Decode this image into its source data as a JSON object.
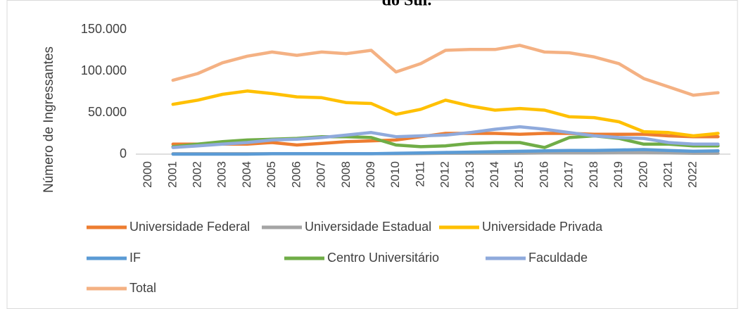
{
  "chart_data": {
    "type": "line",
    "title": "do Sul.",
    "ylabel": "Número de Ingressantes",
    "categories": [
      "2000",
      "2001",
      "2002",
      "2003",
      "2004",
      "2005",
      "2006",
      "2007",
      "2008",
      "2009",
      "2010",
      "2011",
      "2012",
      "2013",
      "2014",
      "2015",
      "2016",
      "2017",
      "2018",
      "2019",
      "2020",
      "2021",
      "2022",
      null
    ],
    "ylim": [
      0,
      150000
    ],
    "yticks": [
      0,
      {
        "value": 50000,
        "label": "50.000"
      },
      {
        "value": 100000,
        "label": "100.000"
      },
      {
        "value": 150000,
        "label": "150.000"
      }
    ],
    "grid": false,
    "legend": "bottom",
    "series": [
      {
        "name": "Universidade Federal",
        "color": "#ed7d31",
        "values": [
          null,
          12000,
          12000,
          12000,
          12000,
          14000,
          11000,
          13000,
          15000,
          16000,
          17000,
          21000,
          25000,
          25000,
          25000,
          24000,
          25000,
          25000,
          24000,
          24000,
          24000,
          22000,
          21000,
          21000
        ]
      },
      {
        "name": "Universidade Estadual",
        "color": "#a5a5a5",
        "values": [
          null,
          500,
          500,
          500,
          500,
          500,
          500,
          500,
          500,
          500,
          500,
          800,
          1000,
          1000,
          1000,
          1200,
          1500,
          1500,
          1500,
          2000,
          2000,
          1500,
          1000,
          1000
        ]
      },
      {
        "name": "Universidade Privada",
        "color": "#ffc000",
        "values": [
          null,
          60000,
          65000,
          72000,
          76000,
          73000,
          69000,
          68000,
          62000,
          61000,
          48000,
          54000,
          65000,
          58000,
          53000,
          55000,
          53000,
          45000,
          44000,
          39000,
          27000,
          26000,
          22000,
          25000
        ]
      },
      {
        "name": "IF",
        "color": "#5b9bd5",
        "values": [
          null,
          0,
          0,
          0,
          0,
          500,
          500,
          500,
          500,
          500,
          1000,
          1500,
          2000,
          2500,
          3000,
          3500,
          4000,
          4500,
          4500,
          5000,
          5500,
          4500,
          3500,
          4000
        ]
      },
      {
        "name": "Centro Universitário",
        "color": "#70ad47",
        "values": [
          null,
          9000,
          12000,
          15000,
          17000,
          18000,
          19000,
          21000,
          21000,
          20000,
          11000,
          9000,
          10000,
          13000,
          14000,
          14000,
          8000,
          20000,
          22000,
          19000,
          12000,
          12000,
          10000,
          10000
        ]
      },
      {
        "name": "Faculdade",
        "color": "#8faadc",
        "values": [
          null,
          8000,
          10000,
          12000,
          14000,
          17000,
          18000,
          20000,
          23000,
          26000,
          21000,
          22000,
          23000,
          26000,
          30000,
          33000,
          30000,
          26000,
          22000,
          20000,
          19000,
          14000,
          12000,
          12000
        ]
      },
      {
        "name": "Total",
        "color": "#f4b183",
        "values": [
          null,
          89000,
          97000,
          110000,
          118000,
          123000,
          119000,
          123000,
          121000,
          125000,
          99000,
          109000,
          125000,
          126000,
          126000,
          131000,
          123000,
          122000,
          117000,
          109000,
          91000,
          81000,
          71000,
          74000
        ]
      }
    ]
  }
}
